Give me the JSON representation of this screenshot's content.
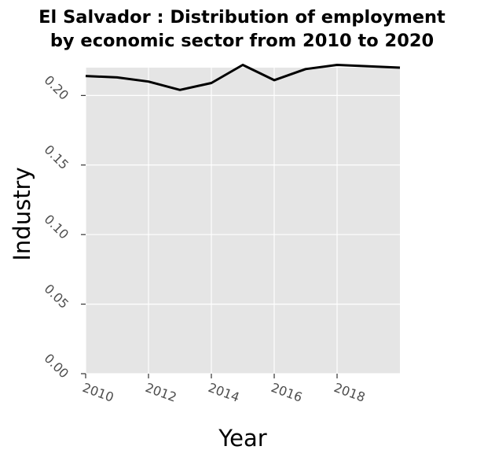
{
  "chart_data": {
    "type": "line",
    "title_lines": [
      "El Salvador : Distribution of employment",
      "by economic sector from 2010 to 2020"
    ],
    "xlabel": "Year",
    "ylabel": "Industry",
    "xlim": [
      2010,
      2020
    ],
    "ylim": [
      0,
      0.22
    ],
    "x_ticks": [
      2010,
      2012,
      2014,
      2016,
      2018
    ],
    "x_tick_labels": [
      "2010",
      "2012",
      "2014",
      "2016",
      "2018"
    ],
    "y_ticks": [
      0,
      0.05,
      0.1,
      0.15,
      0.2
    ],
    "y_tick_labels": [
      "0.00",
      "0.05",
      "0.10",
      "0.15",
      "0.20"
    ],
    "grid": true,
    "background": "#e5e5e5",
    "gridline_color": "#ffffff",
    "line_color": "#000000",
    "series": [
      {
        "x": [
          2010,
          2011,
          2012,
          2013,
          2014,
          2015,
          2016,
          2017,
          2018,
          2019,
          2020
        ],
        "values": [
          0.214,
          0.213,
          0.21,
          0.204,
          0.209,
          0.222,
          0.211,
          0.219,
          0.222,
          0.221,
          0.22
        ]
      }
    ]
  }
}
